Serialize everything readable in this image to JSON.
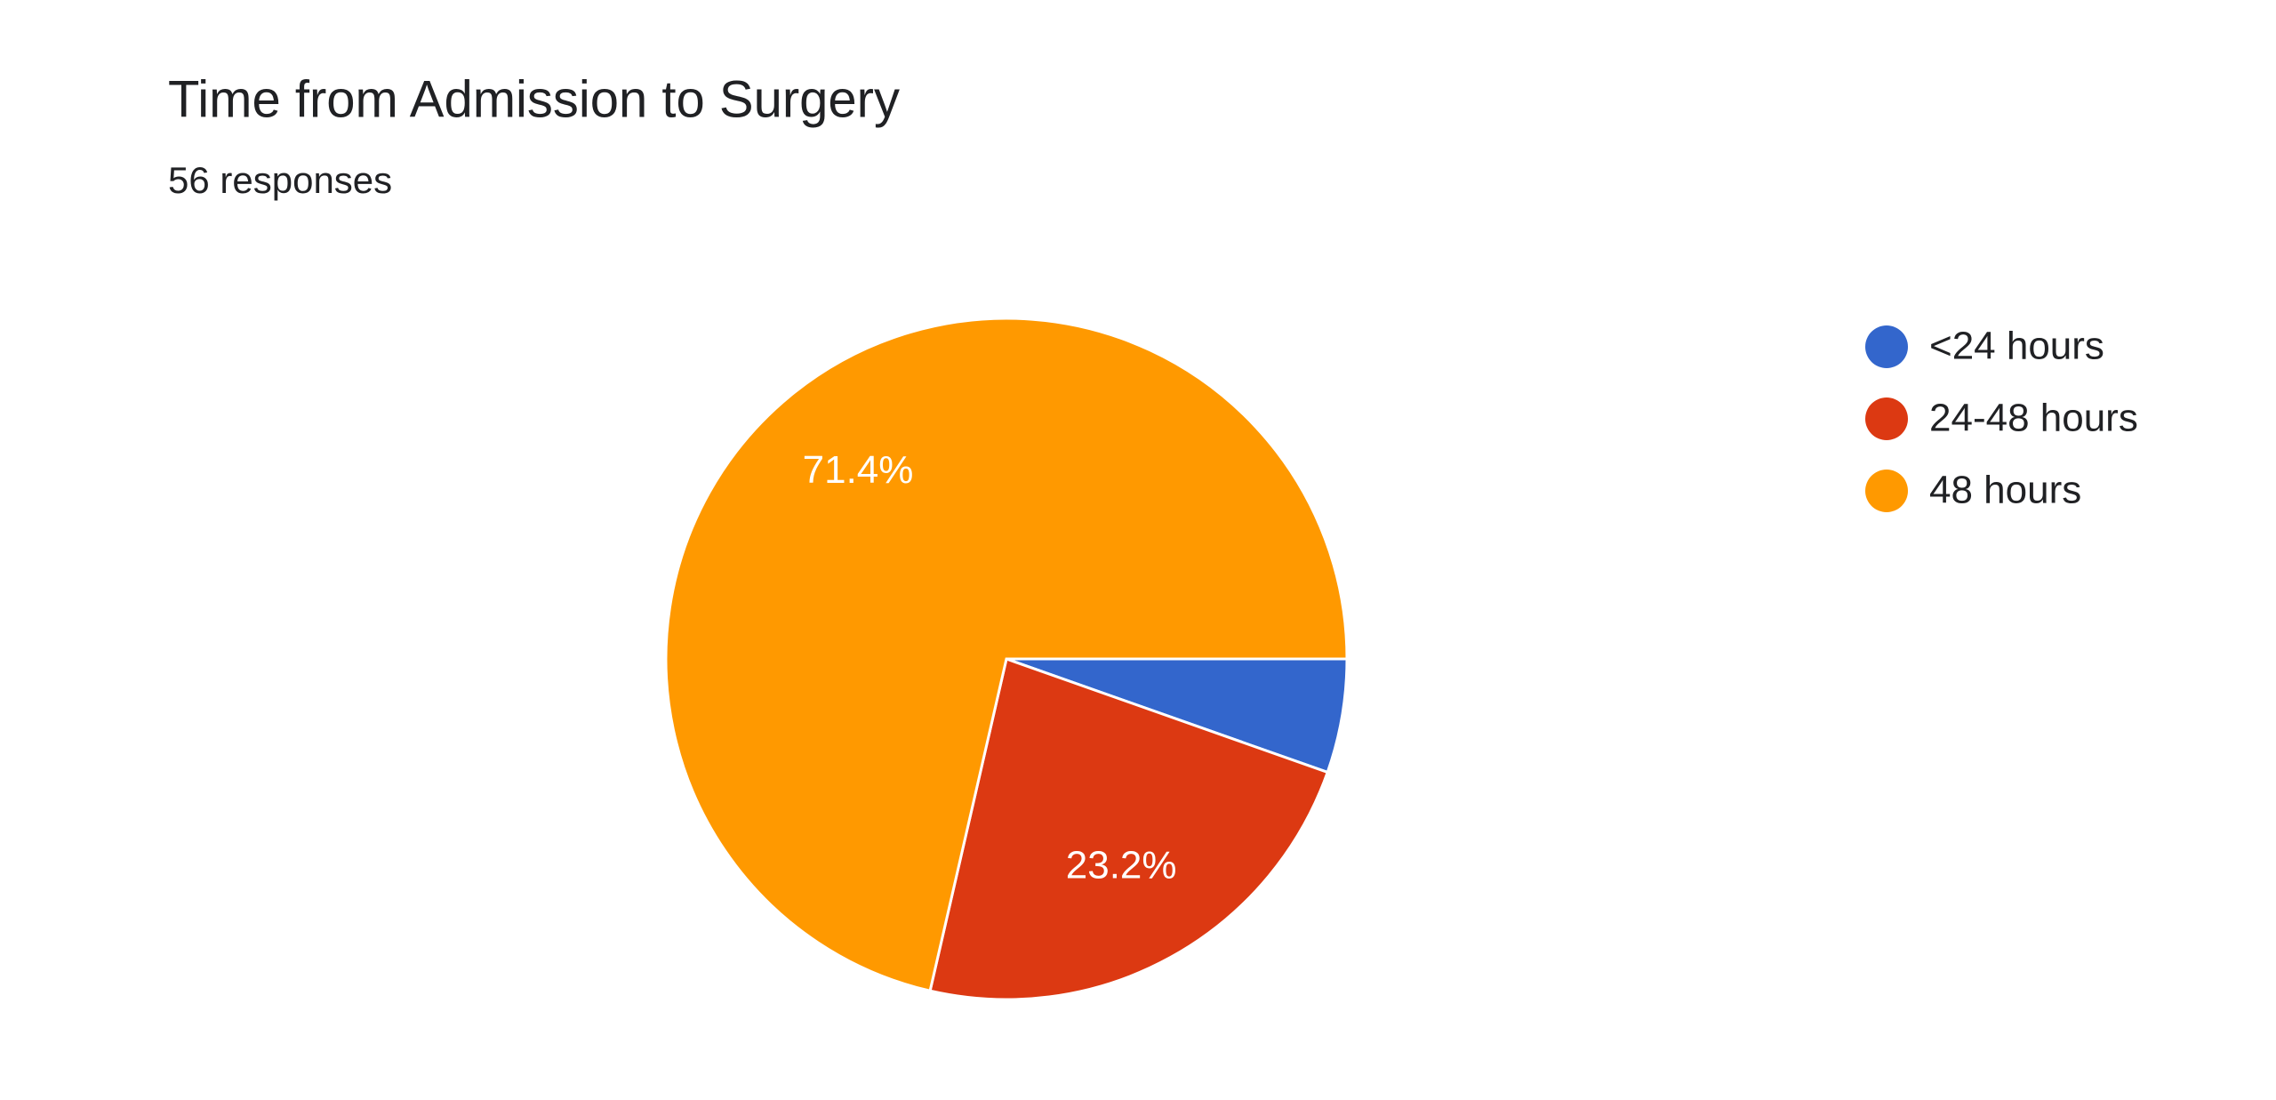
{
  "chart_data": {
    "type": "pie",
    "title": "Time from Admission to Surgery",
    "subtitle": "56 responses",
    "categories": [
      "<24 hours",
      "24-48 hours",
      "48 hours"
    ],
    "values": [
      5.4,
      23.2,
      71.4
    ],
    "value_labels": [
      null,
      "23.2%",
      "71.4%"
    ],
    "colors": [
      "#3366cc",
      "#dc3912",
      "#ff9900"
    ],
    "legend": "right"
  }
}
